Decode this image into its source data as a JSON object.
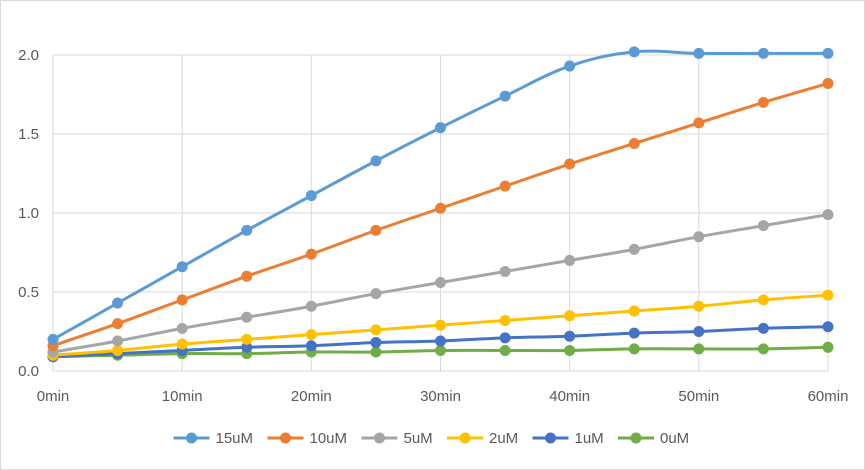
{
  "chart_data": {
    "type": "line",
    "title": "",
    "xlabel": "",
    "ylabel": "",
    "x": [
      0,
      5,
      10,
      15,
      20,
      25,
      30,
      35,
      40,
      45,
      50,
      55,
      60
    ],
    "x_tick_labels": [
      "0min",
      "10min",
      "20min",
      "30min",
      "40min",
      "50min",
      "60min"
    ],
    "x_tick_values": [
      0,
      10,
      20,
      30,
      40,
      50,
      60
    ],
    "y_tick_labels": [
      "0.0",
      "0.5",
      "1.0",
      "1.5",
      "2.0"
    ],
    "y_tick_values": [
      0,
      0.5,
      1.0,
      1.5,
      2.0
    ],
    "xlim": [
      0,
      60
    ],
    "ylim": [
      0,
      2.0
    ],
    "grid": true,
    "legend_position": "bottom",
    "series": [
      {
        "name": "15uM",
        "color": "#5b9bd5",
        "values": [
          0.2,
          0.43,
          0.66,
          0.89,
          1.11,
          1.33,
          1.54,
          1.74,
          1.93,
          2.02,
          2.01,
          2.01,
          2.01
        ]
      },
      {
        "name": "10uM",
        "color": "#ed7d31",
        "values": [
          0.16,
          0.3,
          0.45,
          0.6,
          0.74,
          0.89,
          1.03,
          1.17,
          1.31,
          1.44,
          1.57,
          1.7,
          1.82
        ]
      },
      {
        "name": "5uM",
        "color": "#a5a5a5",
        "values": [
          0.12,
          0.19,
          0.27,
          0.34,
          0.41,
          0.49,
          0.56,
          0.63,
          0.7,
          0.77,
          0.85,
          0.92,
          0.99
        ]
      },
      {
        "name": "2uM",
        "color": "#ffc000",
        "values": [
          0.1,
          0.13,
          0.17,
          0.2,
          0.23,
          0.26,
          0.29,
          0.32,
          0.35,
          0.38,
          0.41,
          0.45,
          0.48
        ]
      },
      {
        "name": "1uM",
        "color": "#4472c4",
        "values": [
          0.09,
          0.11,
          0.13,
          0.15,
          0.16,
          0.18,
          0.19,
          0.21,
          0.22,
          0.24,
          0.25,
          0.27,
          0.28
        ]
      },
      {
        "name": "0uM",
        "color": "#70ad47",
        "values": [
          0.09,
          0.1,
          0.11,
          0.11,
          0.12,
          0.12,
          0.13,
          0.13,
          0.13,
          0.14,
          0.14,
          0.14,
          0.15
        ]
      }
    ]
  }
}
